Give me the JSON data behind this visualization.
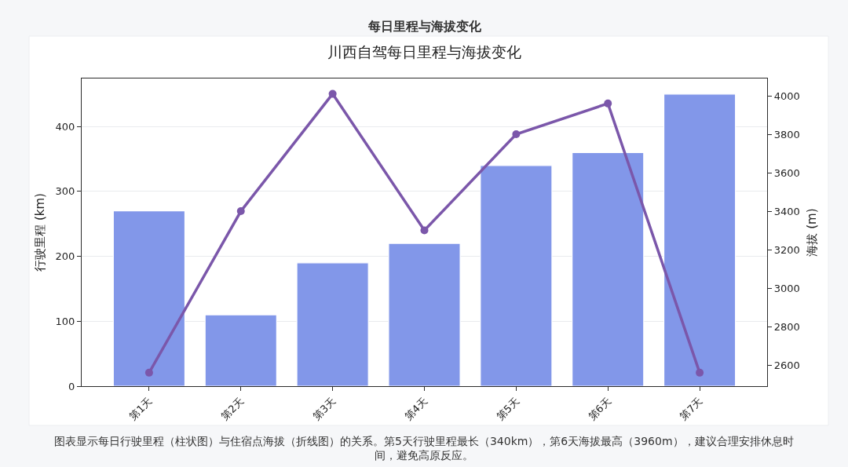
{
  "chart_data": {
    "type": "bar",
    "title": "每日里程与海拔变化",
    "subtitle": "川西自驾每日里程与海拔变化",
    "ylabel": "行驶里程 (km)",
    "y2label": "海拔 (m)",
    "categories": [
      "第1天",
      "第2天",
      "第3天",
      "第4天",
      "第5天",
      "第6天",
      "第7天"
    ],
    "series": [
      {
        "color": "#8297e9",
        "values": [
          270,
          110,
          190,
          220,
          340,
          360,
          450
        ]
      },
      {
        "type": "line",
        "axis": "y2",
        "color": "#7b57aa",
        "values": [
          2560,
          3400,
          4010,
          3300,
          3800,
          3960,
          2560
        ]
      }
    ],
    "ylim": [
      0,
      474
    ],
    "yticks": [
      0,
      100,
      200,
      300,
      400
    ],
    "y2lim": [
      2490,
      4090
    ],
    "y2ticks": [
      2600,
      2800,
      3000,
      3200,
      3400,
      3600,
      3800,
      4000
    ],
    "grid": "y",
    "marker": "circle",
    "line_style": "solid",
    "annotations": [
      "图表显示每日行驶里程（柱状图）与住宿点海拔（折线图）的关系。第5天行驶里程最长（340km），第6天海拔最高（3960m），建议合理安排休息时间，避免高原反应。"
    ]
  }
}
